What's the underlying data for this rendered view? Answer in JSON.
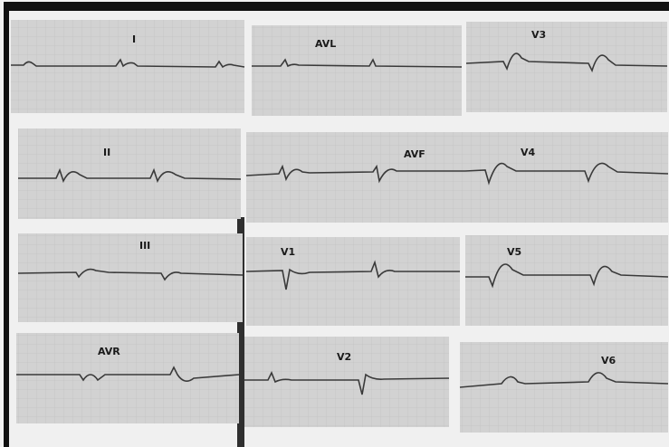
{
  "image": {
    "description_free": true,
    "colors": {
      "mount_background": "#f2f2f2",
      "frame_dark": "#0f0f0f",
      "strip_paper": "#d2d2d2",
      "grid_line": "#b6b6b6",
      "trace": "#3a3a3a"
    }
  },
  "strips": [
    {
      "label": "I"
    },
    {
      "label": "AVL"
    },
    {
      "label": "V3"
    },
    {
      "label": "II"
    },
    {
      "label": "AVF"
    },
    {
      "label": "V4"
    },
    {
      "label": "III"
    },
    {
      "label": "V1"
    },
    {
      "label": "V5"
    },
    {
      "label": "AVR"
    },
    {
      "label": "V2"
    },
    {
      "label": "V6"
    }
  ]
}
